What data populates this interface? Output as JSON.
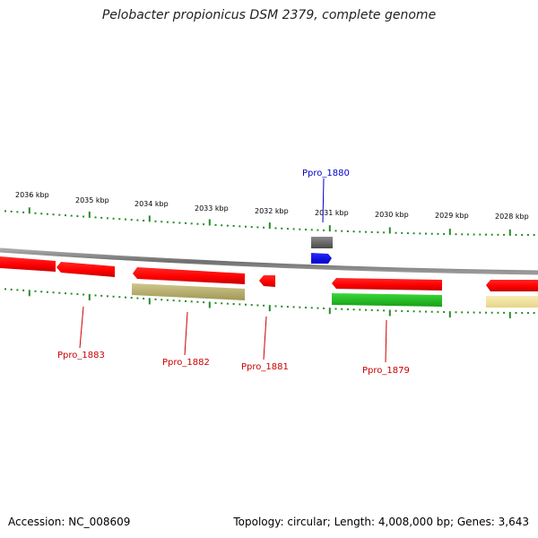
{
  "title": "Pelobacter propionicus DSM 2379, complete genome",
  "footer": {
    "accession": "Accession: NC_008609",
    "topology": "Topology: circular; Length: 4,008,000 bp; Genes: 3,643"
  },
  "colors": {
    "tick": "#2a8a2a",
    "backbone": "#777777",
    "forward_gene": "#ff0000",
    "highlight_gene": "#0000ff",
    "gray_feature": "#6e6e6e",
    "olive_feature": "#b5ad6a",
    "green_feature": "#22bb22",
    "yellow_feature": "#f0e3a0",
    "label_red": "#cc0000",
    "label_blue": "#0000cc"
  },
  "scale_labels": [
    "2036 kbp",
    "2035 kbp",
    "2034 kbp",
    "2033 kbp",
    "2032 kbp",
    "2031 kbp",
    "2030 kbp",
    "2029 kbp",
    "2028 kbp"
  ],
  "gene_labels": [
    {
      "id": "ppro1880",
      "text": "Ppro_1880",
      "strand": "forward"
    },
    {
      "id": "ppro1883",
      "text": "Ppro_1883",
      "strand": "reverse"
    },
    {
      "id": "ppro1882",
      "text": "Ppro_1882",
      "strand": "reverse"
    },
    {
      "id": "ppro1881",
      "text": "Ppro_1881",
      "strand": "reverse"
    },
    {
      "id": "ppro1879",
      "text": "Ppro_1879",
      "strand": "reverse"
    }
  ]
}
